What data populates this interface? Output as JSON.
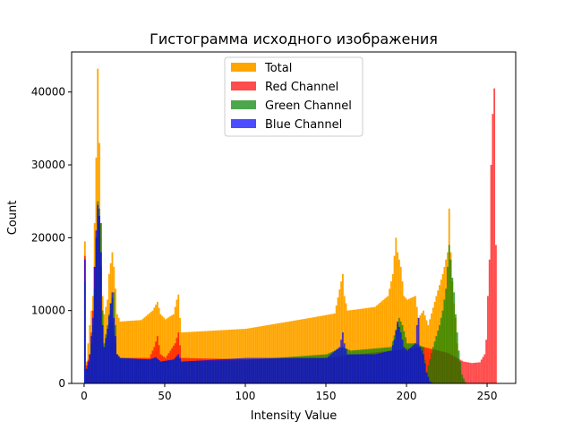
{
  "chart_data": {
    "type": "histogram",
    "title": "Гистограмма исходного изображения",
    "xlabel": "Intensity Value",
    "ylabel": "Count",
    "xlim": [
      -7.75,
      267.75
    ],
    "ylim": [
      0,
      45500
    ],
    "xticks": [
      0,
      50,
      100,
      150,
      200,
      250
    ],
    "yticks": [
      0,
      10000,
      20000,
      30000,
      40000
    ],
    "legend": {
      "location": "upper-center"
    },
    "series": [
      {
        "name": "Total",
        "color": "#ffa500",
        "opacity": 1.0,
        "keypoints": [
          [
            0,
            19500
          ],
          [
            1,
            3000
          ],
          [
            3,
            8000
          ],
          [
            5,
            12000
          ],
          [
            6,
            22000
          ],
          [
            7,
            31000
          ],
          [
            8,
            43200
          ],
          [
            9,
            33000
          ],
          [
            10,
            22000
          ],
          [
            11,
            12000
          ],
          [
            12,
            9500
          ],
          [
            14,
            11500
          ],
          [
            15,
            15000
          ],
          [
            17,
            18000
          ],
          [
            18,
            16000
          ],
          [
            19,
            13000
          ],
          [
            20,
            9500
          ],
          [
            22,
            8500
          ],
          [
            35,
            8700
          ],
          [
            42,
            10000
          ],
          [
            45,
            11200
          ],
          [
            47,
            9500
          ],
          [
            50,
            8800
          ],
          [
            55,
            9500
          ],
          [
            57,
            11500
          ],
          [
            58,
            12200
          ],
          [
            59,
            9000
          ],
          [
            60,
            7000
          ],
          [
            100,
            7500
          ],
          [
            140,
            9000
          ],
          [
            155,
            9600
          ],
          [
            159,
            14000
          ],
          [
            160,
            15000
          ],
          [
            161,
            12000
          ],
          [
            163,
            10000
          ],
          [
            170,
            10200
          ],
          [
            180,
            10500
          ],
          [
            188,
            12000
          ],
          [
            191,
            15000
          ],
          [
            193,
            20000
          ],
          [
            194,
            18000
          ],
          [
            196,
            16000
          ],
          [
            198,
            12000
          ],
          [
            200,
            11500
          ],
          [
            205,
            12000
          ],
          [
            207,
            9000
          ],
          [
            210,
            10000
          ],
          [
            213,
            8000
          ],
          [
            218,
            12000
          ],
          [
            222,
            15000
          ],
          [
            225,
            18000
          ],
          [
            226,
            24000
          ],
          [
            227,
            18000
          ],
          [
            228,
            14000
          ],
          [
            229,
            11000
          ],
          [
            230,
            9000
          ],
          [
            231,
            5500
          ],
          [
            232,
            3000
          ],
          [
            234,
            600
          ],
          [
            236,
            200
          ],
          [
            237,
            0
          ]
        ]
      },
      {
        "name": "Red Channel",
        "color": "#ff0000",
        "opacity": 0.7,
        "keypoints": [
          [
            0,
            17500
          ],
          [
            1,
            2500
          ],
          [
            3,
            4000
          ],
          [
            5,
            10000
          ],
          [
            6,
            16000
          ],
          [
            7,
            20000
          ],
          [
            8,
            24000
          ],
          [
            9,
            22000
          ],
          [
            10,
            16000
          ],
          [
            11,
            8000
          ],
          [
            12,
            5000
          ],
          [
            14,
            6500
          ],
          [
            16,
            10000
          ],
          [
            18,
            7000
          ],
          [
            20,
            4000
          ],
          [
            22,
            3500
          ],
          [
            40,
            3500
          ],
          [
            43,
            5000
          ],
          [
            45,
            6500
          ],
          [
            47,
            4000
          ],
          [
            50,
            3500
          ],
          [
            56,
            5500
          ],
          [
            58,
            7000
          ],
          [
            60,
            3500
          ],
          [
            100,
            3300
          ],
          [
            150,
            3500
          ],
          [
            190,
            4500
          ],
          [
            210,
            5000
          ],
          [
            225,
            4200
          ],
          [
            235,
            3000
          ],
          [
            240,
            2800
          ],
          [
            245,
            2900
          ],
          [
            248,
            4000
          ],
          [
            249,
            6000
          ],
          [
            250,
            12000
          ],
          [
            251,
            17000
          ],
          [
            252,
            30000
          ],
          [
            253,
            37000
          ],
          [
            254,
            40500
          ],
          [
            255,
            19000
          ]
        ]
      },
      {
        "name": "Green Channel",
        "color": "#008000",
        "opacity": 0.7,
        "keypoints": [
          [
            0,
            14000
          ],
          [
            1,
            2000
          ],
          [
            3,
            3000
          ],
          [
            5,
            8000
          ],
          [
            6,
            13000
          ],
          [
            7,
            20000
          ],
          [
            8,
            25000
          ],
          [
            9,
            24000
          ],
          [
            10,
            22000
          ],
          [
            11,
            10000
          ],
          [
            12,
            5500
          ],
          [
            14,
            8000
          ],
          [
            16,
            11000
          ],
          [
            18,
            12500
          ],
          [
            19,
            8000
          ],
          [
            20,
            4000
          ],
          [
            22,
            3500
          ],
          [
            40,
            3200
          ],
          [
            44,
            3500
          ],
          [
            47,
            3000
          ],
          [
            55,
            3200
          ],
          [
            58,
            3600
          ],
          [
            60,
            3000
          ],
          [
            100,
            3200
          ],
          [
            150,
            4000
          ],
          [
            160,
            5000
          ],
          [
            165,
            4500
          ],
          [
            190,
            5000
          ],
          [
            195,
            9000
          ],
          [
            197,
            8000
          ],
          [
            200,
            5500
          ],
          [
            205,
            5500
          ],
          [
            210,
            5000
          ],
          [
            212,
            1500
          ],
          [
            213,
            2500
          ],
          [
            216,
            5000
          ],
          [
            220,
            8000
          ],
          [
            222,
            10000
          ],
          [
            224,
            13000
          ],
          [
            225,
            16000
          ],
          [
            226,
            19000
          ],
          [
            227,
            17000
          ],
          [
            228,
            14500
          ],
          [
            229,
            12500
          ],
          [
            230,
            9500
          ],
          [
            231,
            7000
          ],
          [
            232,
            4500
          ],
          [
            233,
            3000
          ],
          [
            234,
            1200
          ],
          [
            236,
            200
          ],
          [
            237,
            0
          ]
        ]
      },
      {
        "name": "Blue Channel",
        "color": "#0000ff",
        "opacity": 0.7,
        "keypoints": [
          [
            0,
            17000
          ],
          [
            1,
            2000
          ],
          [
            3,
            4000
          ],
          [
            5,
            9000
          ],
          [
            6,
            16000
          ],
          [
            7,
            21000
          ],
          [
            8,
            24500
          ],
          [
            9,
            23000
          ],
          [
            10,
            18000
          ],
          [
            11,
            8000
          ],
          [
            12,
            5000
          ],
          [
            14,
            7500
          ],
          [
            16,
            11000
          ],
          [
            17,
            12500
          ],
          [
            18,
            9000
          ],
          [
            20,
            4000
          ],
          [
            22,
            3500
          ],
          [
            40,
            3300
          ],
          [
            44,
            3600
          ],
          [
            47,
            3000
          ],
          [
            55,
            3300
          ],
          [
            58,
            4000
          ],
          [
            60,
            3000
          ],
          [
            100,
            3500
          ],
          [
            150,
            3500
          ],
          [
            158,
            5000
          ],
          [
            160,
            7000
          ],
          [
            161,
            5500
          ],
          [
            163,
            4000
          ],
          [
            180,
            4000
          ],
          [
            190,
            4500
          ],
          [
            192,
            6000
          ],
          [
            194,
            8500
          ],
          [
            196,
            7000
          ],
          [
            198,
            5000
          ],
          [
            200,
            4500
          ],
          [
            205,
            5500
          ],
          [
            206,
            8000
          ],
          [
            207,
            9000
          ],
          [
            208,
            5000
          ],
          [
            210,
            4000
          ],
          [
            212,
            1500
          ],
          [
            214,
            300
          ],
          [
            216,
            0
          ]
        ]
      }
    ]
  }
}
